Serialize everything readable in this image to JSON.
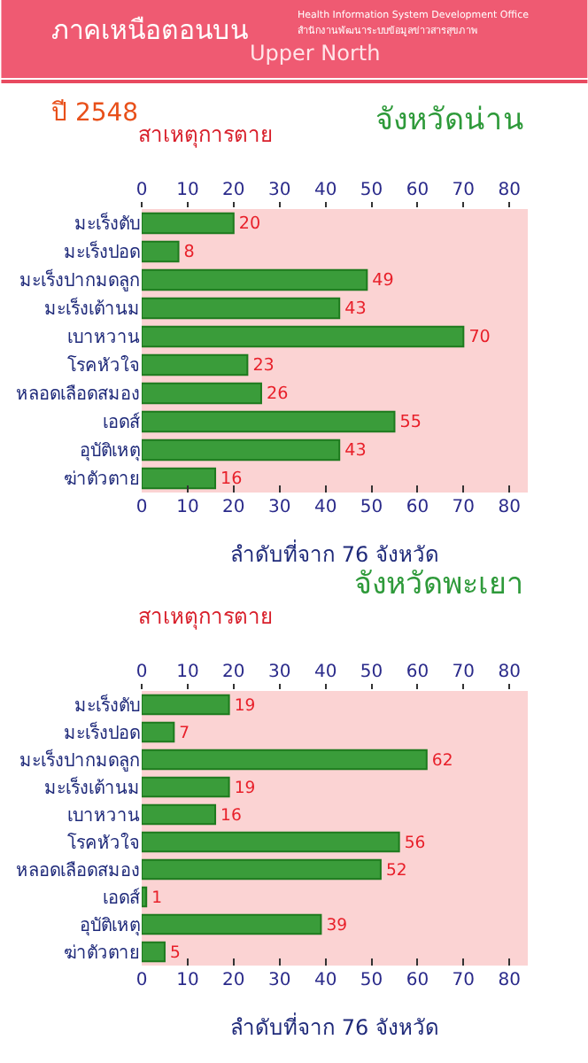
{
  "chart_data": [
    {
      "type": "bar",
      "orientation": "horizontal",
      "title": "จังหวัดน่าน",
      "ylabel": "สาเหตุการตาย",
      "xlabel": "ลำดับที่จาก 76 จังหวัด",
      "annotations": [
        "ภาคเหนือตอนบน",
        "Upper North",
        "Health Information System Development Office",
        "สำนักงานพัฒนาระบบข้อมูลข่าวสารสุขภาพ",
        "ปี 2548"
      ],
      "categories": [
        "มะเร็งตับ",
        "มะเร็งปอด",
        "มะเร็งปากมดลูก",
        "มะเร็งเต้านม",
        "เบาหวาน",
        "โรคหัวใจ",
        "หลอดเลือดสมอง",
        "เอดส์",
        "อุบัติเหตุ",
        "ฆ่าตัวตาย"
      ],
      "values": [
        20,
        8,
        49,
        43,
        70,
        23,
        26,
        55,
        43,
        16
      ],
      "color": "#3a9c3a",
      "data_labels": true,
      "xlim": [
        0,
        84
      ],
      "xticks": [
        0,
        10,
        20,
        30,
        40,
        50,
        60,
        70,
        80
      ],
      "x2lim": [
        0,
        84
      ],
      "x2ticks": [
        0,
        10,
        20,
        30,
        40,
        50,
        60,
        70,
        80
      ]
    },
    {
      "type": "bar",
      "orientation": "horizontal",
      "title": "จังหวัดพะเยา",
      "ylabel": "สาเหตุการตาย",
      "xlabel": "ลำดับที่จาก 76 จังหวัด",
      "categories": [
        "มะเร็งตับ",
        "มะเร็งปอด",
        "มะเร็งปากมดลูก",
        "มะเร็งเต้านม",
        "เบาหวาน",
        "โรคหัวใจ",
        "หลอดเลือดสมอง",
        "เอดส์",
        "อุบัติเหตุ",
        "ฆ่าตัวตาย"
      ],
      "values": [
        19,
        7,
        62,
        19,
        16,
        56,
        52,
        1,
        39,
        5
      ],
      "color": "#3a9c3a",
      "data_labels": true,
      "xlim": [
        0,
        84
      ],
      "xticks": [
        0,
        10,
        20,
        30,
        40,
        50,
        60,
        70,
        80
      ],
      "x2lim": [
        0,
        84
      ],
      "x2ticks": [
        0,
        10,
        20,
        30,
        40,
        50,
        60,
        70,
        80
      ]
    }
  ]
}
